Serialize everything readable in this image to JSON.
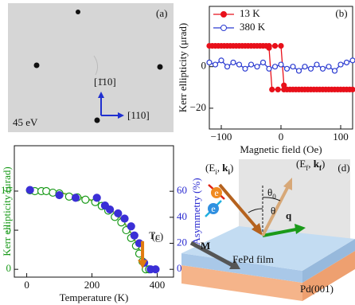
{
  "chart_data": [
    {
      "type": "line",
      "panel": "(b)",
      "xlabel": "Magnetic field (Oe)",
      "ylabel": "Kerr ellipticity (μrad)",
      "xlim": [
        -120,
        120
      ],
      "ylim": [
        -30,
        29
      ],
      "xticks": [
        {
          "value": -100,
          "label": "−100"
        },
        0,
        100
      ],
      "yticks": [
        {
          "value": -20,
          "label": "−20"
        },
        0
      ],
      "legend": "upper-left",
      "series": [
        {
          "name": "13 K",
          "color": "#e8101a",
          "marker": "filled",
          "line": true,
          "x": [
            -120,
            -110,
            -100,
            -90,
            -80,
            -70,
            -60,
            -50,
            -40,
            -30,
            -20,
            -10,
            0,
            5,
            10,
            20,
            30,
            40,
            50,
            60,
            70,
            80,
            90,
            100,
            110,
            120,
            115,
            105,
            95,
            85,
            75,
            65,
            55,
            45,
            35,
            25,
            15,
            5,
            -5,
            -15,
            -20,
            -25,
            -35,
            -45,
            -55,
            -65,
            -75,
            -85,
            -95,
            -105,
            -115
          ],
          "values": [
            10,
            10,
            10,
            10,
            10,
            10,
            10,
            10,
            10,
            10,
            10,
            10,
            10,
            -9,
            -11,
            -11,
            -11,
            -11,
            -11,
            -11,
            -11,
            -11,
            -11,
            -11,
            -11,
            -11,
            -11,
            -11,
            -11,
            -11,
            -11,
            -11,
            -11,
            -11,
            -11,
            -11,
            -11,
            -11,
            -11,
            -11,
            9,
            10,
            10,
            10,
            10,
            10,
            10,
            10,
            10,
            10,
            10
          ]
        },
        {
          "name": "380 K",
          "color": "#2b3bd1",
          "marker": "open",
          "line": true,
          "x": [
            -120,
            -110,
            -100,
            -90,
            -80,
            -70,
            -60,
            -50,
            -40,
            -30,
            -20,
            -10,
            0,
            10,
            20,
            30,
            40,
            50,
            60,
            70,
            80,
            90,
            100,
            110,
            120
          ],
          "values": [
            2,
            1,
            3,
            0,
            2,
            1,
            -1,
            1,
            0,
            2,
            -1,
            0,
            1,
            -1,
            0,
            -2,
            0,
            -1,
            1,
            -1,
            0,
            -2,
            1,
            2,
            3
          ]
        }
      ]
    },
    {
      "type": "scatter",
      "panel": "(c)",
      "xlabel": "Temperature (K)",
      "ylabel": "Kerr ellipticity (μrad)",
      "y2label": "Asymmetry (%)",
      "ylabel_color": "#1a9a1a",
      "y2label_color": "#2a2ad0",
      "xlim": [
        -38,
        450
      ],
      "xticks": [
        0,
        200,
        400
      ],
      "ylim": [
        -1,
        15.8
      ],
      "yticks": [
        0,
        5,
        10
      ],
      "y2lim": [
        -6,
        95
      ],
      "y2ticks": [
        0,
        20,
        40,
        60
      ],
      "annotation": {
        "text": "T",
        "sub": "C",
        "x": 355,
        "color": "#e07b10"
      },
      "series": [
        {
          "color": "#7ab03a",
          "marker": "none",
          "line": true,
          "x": [
            0,
            50,
            100,
            150,
            200,
            250,
            280,
            300,
            320,
            340,
            350,
            360,
            365,
            370,
            380,
            400
          ],
          "values": [
            10.1,
            10,
            9.8,
            9.4,
            8.8,
            7.8,
            6.9,
            5.9,
            4.6,
            3,
            2,
            0.8,
            0.2,
            0,
            0,
            0
          ]
        },
        {
          "color": "#1a9a1a",
          "marker": "open",
          "line": false,
          "x": [
            10,
            25,
            45,
            60,
            80,
            100,
            130,
            155,
            180,
            210,
            230,
            250,
            270,
            290,
            305,
            320,
            335,
            345,
            355,
            365,
            375
          ],
          "values": [
            10.1,
            10,
            10,
            10,
            9.8,
            9.7,
            9.3,
            9.2,
            8.9,
            8.6,
            8.1,
            7.5,
            6.7,
            6,
            5,
            4,
            3,
            2,
            1,
            0,
            0
          ]
        },
        {
          "color": "#3b2fd6",
          "marker": "filled",
          "line": false,
          "axis": "y2",
          "x": [
            10,
            100,
            150,
            215,
            240,
            255,
            280,
            300,
            320,
            330,
            345,
            360,
            380,
            395
          ],
          "values": [
            61,
            57,
            55,
            55,
            49,
            46,
            43,
            39,
            33,
            26,
            20,
            5,
            0,
            0
          ]
        }
      ]
    }
  ],
  "leed": {
    "panel": "(a)",
    "energy": "45 eV",
    "direction_up": "[1̄10]",
    "direction_right": "[110]"
  },
  "diagram": {
    "panel": "(d)",
    "incident": [
      "(E",
      "i",
      ", ",
      "k",
      "i",
      ")"
    ],
    "final": [
      "(E",
      "f",
      ", ",
      "k",
      "f",
      ")"
    ],
    "theta0": [
      "θ",
      "0"
    ],
    "theta": "θ",
    "q": "q",
    "magnetization": "M",
    "electron": "e",
    "film": "FePd film",
    "substrate": "Pd(001)"
  }
}
